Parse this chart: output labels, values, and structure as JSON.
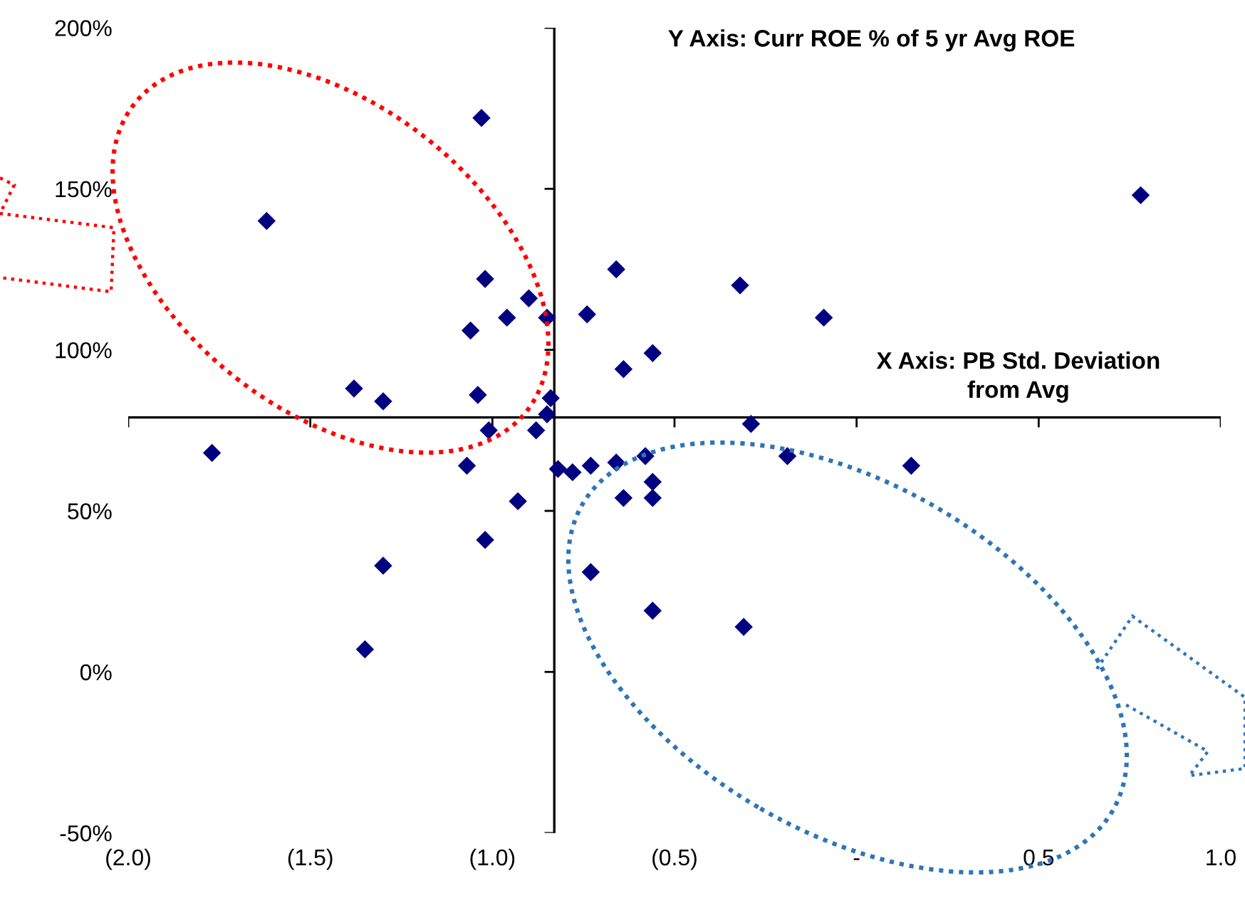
{
  "chart_data": {
    "type": "scatter",
    "marker": "diamond",
    "grid": false,
    "xlim": [
      -2.0,
      1.0
    ],
    "ylim": [
      -50,
      200
    ],
    "xticks": [
      {
        "value": -2.0,
        "label": "(2.0)"
      },
      {
        "value": -1.5,
        "label": "(1.5)"
      },
      {
        "value": -1.0,
        "label": "(1.0)"
      },
      {
        "value": -0.5,
        "label": "(0.5)"
      },
      {
        "value": 0,
        "label": "-"
      },
      {
        "value": 0.5,
        "label": "0.5"
      },
      {
        "value": 1.0,
        "label": "1.0"
      }
    ],
    "yticks": [
      {
        "value": -50,
        "label": "-50%"
      },
      {
        "value": 0,
        "label": "0%"
      },
      {
        "value": 50,
        "label": "50%"
      },
      {
        "value": 100,
        "label": "100%"
      },
      {
        "value": 150,
        "label": "150%"
      },
      {
        "value": 200,
        "label": "200%"
      }
    ],
    "ref_lines": [
      {
        "axis": "x",
        "value": -0.83,
        "color": "#000000"
      },
      {
        "axis": "y",
        "value": 79,
        "color": "#000000"
      }
    ],
    "annotations": [
      "Y Axis: Curr ROE % of 5 yr Avg ROE",
      "X Axis: PB Std. Deviation\nfrom Avg"
    ],
    "series": [
      {
        "color": "#000080",
        "x": [
          -1.03,
          -1.62,
          -1.02,
          -0.9,
          -0.96,
          -0.85,
          -1.06,
          -1.38,
          -1.3,
          -1.04,
          -0.84,
          -0.85,
          -1.01,
          -0.88,
          -1.77,
          -1.07,
          -0.82,
          -0.78,
          -0.93,
          -1.02,
          -1.3,
          -1.35,
          0.78,
          -0.66,
          -0.32,
          -0.74,
          -0.09,
          -0.56,
          -0.64,
          -0.29,
          -0.19,
          0.15,
          -0.73,
          -0.66,
          -0.58,
          -0.56,
          -0.64,
          -0.56,
          -0.73,
          -0.56,
          -0.31
        ],
        "values": [
          172,
          140,
          122,
          116,
          110,
          110,
          106,
          88,
          84,
          86,
          85,
          80,
          75,
          75,
          68,
          64,
          63,
          62,
          53,
          41,
          33,
          7,
          148,
          125,
          120,
          111,
          110,
          99,
          94,
          77,
          67,
          64,
          64,
          65,
          67,
          59,
          54,
          54,
          31,
          19,
          14
        ]
      }
    ]
  }
}
